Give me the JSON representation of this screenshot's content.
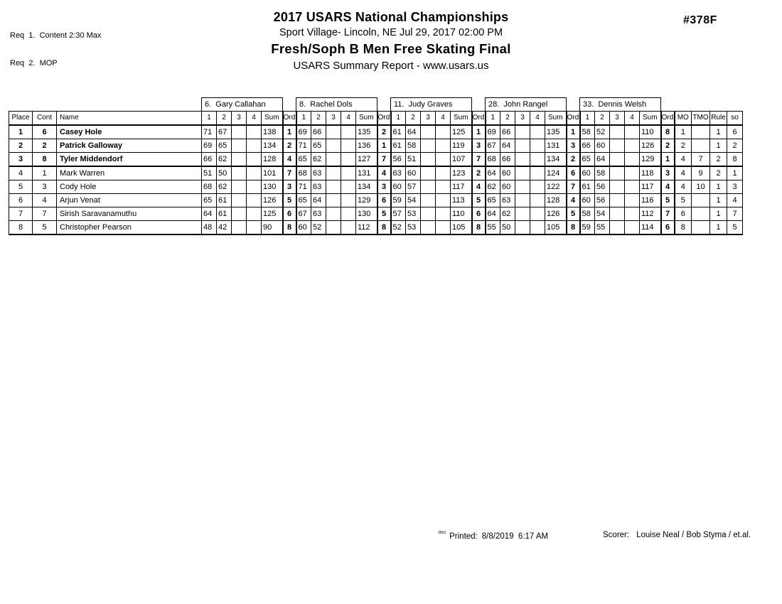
{
  "page": {
    "req_lines": [
      "Req  1.  Content 2:30 Max",
      "Req  2.  MOP"
    ],
    "title": "2017 USARS National Championships",
    "venue_line": "Sport Village- Lincoln, NE  Jul 29, 2017  02:00 PM",
    "event_title": "Fresh/Soph B Men Free Skating Final",
    "report_line": "USARS Summary Report - www.usars.us",
    "program_number": "#378F"
  },
  "table": {
    "judges": [
      "6.  Gary Callahan",
      "8.  Rachel Dols",
      "11.  Judy Graves",
      "28.  John Rangel",
      "33.  Dennis Welsh"
    ],
    "left_headers": [
      "Place",
      "Cont",
      "Name"
    ],
    "score_headers": [
      "1",
      "2",
      "3",
      "4",
      "Sum",
      "Ord"
    ],
    "right_headers": [
      "MO",
      "TMO",
      "Rule",
      "so"
    ],
    "rows": [
      {
        "place": "1",
        "cont": "6",
        "name": "Casey Hole",
        "bold": true,
        "judges": [
          [
            "71",
            "67",
            "",
            "",
            "138",
            "1"
          ],
          [
            "69",
            "66",
            "",
            "",
            "135",
            "2"
          ],
          [
            "61",
            "64",
            "",
            "",
            "125",
            "1"
          ],
          [
            "69",
            "66",
            "",
            "",
            "135",
            "1"
          ],
          [
            "58",
            "52",
            "",
            "",
            "110",
            "8"
          ]
        ],
        "mo": "1",
        "tmo": "",
        "rule": "1",
        "so": "6"
      },
      {
        "place": "2",
        "cont": "2",
        "name": "Patrick Galloway",
        "bold": true,
        "judges": [
          [
            "69",
            "65",
            "",
            "",
            "134",
            "2"
          ],
          [
            "71",
            "65",
            "",
            "",
            "136",
            "1"
          ],
          [
            "61",
            "58",
            "",
            "",
            "119",
            "3"
          ],
          [
            "67",
            "64",
            "",
            "",
            "131",
            "3"
          ],
          [
            "66",
            "60",
            "",
            "",
            "126",
            "2"
          ]
        ],
        "mo": "2",
        "tmo": "",
        "rule": "1",
        "so": "2"
      },
      {
        "place": "3",
        "cont": "8",
        "name": "Tyler Middendorf",
        "bold": true,
        "thick_bottom": true,
        "judges": [
          [
            "66",
            "62",
            "",
            "",
            "128",
            "4"
          ],
          [
            "65",
            "62",
            "",
            "",
            "127",
            "7"
          ],
          [
            "56",
            "51",
            "",
            "",
            "107",
            "7"
          ],
          [
            "68",
            "66",
            "",
            "",
            "134",
            "2"
          ],
          [
            "65",
            "64",
            "",
            "",
            "129",
            "1"
          ]
        ],
        "mo": "4",
        "tmo": "7",
        "rule": "2",
        "so": "8"
      },
      {
        "place": "4",
        "cont": "1",
        "name": "Mark Warren",
        "bold": false,
        "judges": [
          [
            "51",
            "50",
            "",
            "",
            "101",
            "7"
          ],
          [
            "68",
            "63",
            "",
            "",
            "131",
            "4"
          ],
          [
            "63",
            "60",
            "",
            "",
            "123",
            "2"
          ],
          [
            "64",
            "60",
            "",
            "",
            "124",
            "6"
          ],
          [
            "60",
            "58",
            "",
            "",
            "118",
            "3"
          ]
        ],
        "mo": "4",
        "tmo": "9",
        "rule": "2",
        "so": "1"
      },
      {
        "place": "5",
        "cont": "3",
        "name": "Cody Hole",
        "bold": false,
        "judges": [
          [
            "68",
            "62",
            "",
            "",
            "130",
            "3"
          ],
          [
            "71",
            "63",
            "",
            "",
            "134",
            "3"
          ],
          [
            "60",
            "57",
            "",
            "",
            "117",
            "4"
          ],
          [
            "62",
            "60",
            "",
            "",
            "122",
            "7"
          ],
          [
            "61",
            "56",
            "",
            "",
            "117",
            "4"
          ]
        ],
        "mo": "4",
        "tmo": "10",
        "rule": "1",
        "so": "3"
      },
      {
        "place": "6",
        "cont": "4",
        "name": "Arjun Venat",
        "bold": false,
        "judges": [
          [
            "65",
            "61",
            "",
            "",
            "126",
            "5"
          ],
          [
            "65",
            "64",
            "",
            "",
            "129",
            "6"
          ],
          [
            "59",
            "54",
            "",
            "",
            "113",
            "5"
          ],
          [
            "65",
            "63",
            "",
            "",
            "128",
            "4"
          ],
          [
            "60",
            "56",
            "",
            "",
            "116",
            "5"
          ]
        ],
        "mo": "5",
        "tmo": "",
        "rule": "1",
        "so": "4"
      },
      {
        "place": "7",
        "cont": "7",
        "name": "Sirish Saravanamuthu",
        "bold": false,
        "judges": [
          [
            "64",
            "61",
            "",
            "",
            "125",
            "6"
          ],
          [
            "67",
            "63",
            "",
            "",
            "130",
            "5"
          ],
          [
            "57",
            "53",
            "",
            "",
            "110",
            "6"
          ],
          [
            "64",
            "62",
            "",
            "",
            "126",
            "5"
          ],
          [
            "58",
            "54",
            "",
            "",
            "112",
            "7"
          ]
        ],
        "mo": "6",
        "tmo": "",
        "rule": "1",
        "so": "7"
      },
      {
        "place": "8",
        "cont": "5",
        "name": "Christopher Pearson",
        "bold": false,
        "judges": [
          [
            "48",
            "42",
            "",
            "",
            "90",
            "8"
          ],
          [
            "60",
            "52",
            "",
            "",
            "112",
            "8"
          ],
          [
            "52",
            "53",
            "",
            "",
            "105",
            "8"
          ],
          [
            "55",
            "50",
            "",
            "",
            "105",
            "8"
          ],
          [
            "59",
            "55",
            "",
            "",
            "114",
            "6"
          ]
        ],
        "mo": "8",
        "tmo": "",
        "rule": "1",
        "so": "5"
      }
    ]
  },
  "footer": {
    "version": "3903",
    "printed_label": "Printed:",
    "printed_value": "8/8/2019  6:17 AM",
    "scorer_label": "Scorer:",
    "scorer_value": "Louise Neal / Bob Styma / et.al."
  }
}
